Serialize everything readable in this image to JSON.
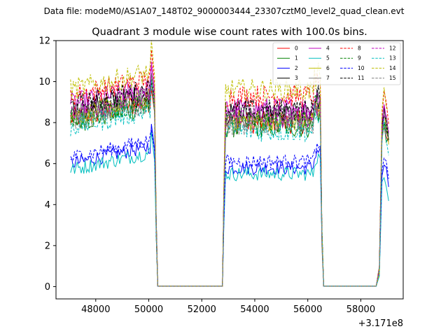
{
  "chart_data": {
    "type": "line",
    "suptitle": "Data file: modeM0/AS1A07_148T02_9000003444_23307cztM0_level2_quad_clean.evt",
    "title": "Quadrant 3 module wise count rates with 100.0s bins.",
    "xlabel": "",
    "ylabel": "",
    "offset_label": "+3.171e8",
    "xlim": [
      46500,
      59600
    ],
    "ylim": [
      -0.6,
      12
    ],
    "x_ticks": [
      48000,
      50000,
      52000,
      54000,
      56000,
      58000
    ],
    "y_ticks": [
      0,
      2,
      4,
      6,
      8,
      10,
      12
    ],
    "gaps": [
      {
        "x_start": 50300,
        "x_end": 52800
      },
      {
        "x_start": 56550,
        "x_end": 58600
      }
    ],
    "segments": [
      {
        "x_start": 47050,
        "x_end": 50300
      },
      {
        "x_start": 52800,
        "x_end": 56550
      },
      {
        "x_start": 58600,
        "x_end": 59050
      }
    ],
    "series": [
      {
        "name": "0",
        "color": "#ff0000",
        "dash": "solid",
        "base": 8.2
      },
      {
        "name": "1",
        "color": "#008000",
        "dash": "solid",
        "base": 8.0
      },
      {
        "name": "2",
        "color": "#0000ff",
        "dash": "solid",
        "base": 6.0
      },
      {
        "name": "3",
        "color": "#000000",
        "dash": "solid",
        "base": 8.6
      },
      {
        "name": "4",
        "color": "#bf00bf",
        "dash": "solid",
        "base": 8.9
      },
      {
        "name": "5",
        "color": "#00bfbf",
        "dash": "solid",
        "base": 5.7
      },
      {
        "name": "6",
        "color": "#bfbf00",
        "dash": "solid",
        "base": 8.3
      },
      {
        "name": "7",
        "color": "#808080",
        "dash": "solid",
        "base": 8.4
      },
      {
        "name": "8",
        "color": "#ff0000",
        "dash": "dashed",
        "base": 9.3
      },
      {
        "name": "9",
        "color": "#008000",
        "dash": "dashed",
        "base": 8.2
      },
      {
        "name": "10",
        "color": "#0000ff",
        "dash": "dashed",
        "base": 6.3
      },
      {
        "name": "11",
        "color": "#000000",
        "dash": "dashed",
        "base": 8.8
      },
      {
        "name": "12",
        "color": "#bf00bf",
        "dash": "dashed",
        "base": 8.5
      },
      {
        "name": "13",
        "color": "#00bfbf",
        "dash": "dashed",
        "base": 7.8
      },
      {
        "name": "14",
        "color": "#bfbf00",
        "dash": "dashed",
        "base": 9.6
      },
      {
        "name": "15",
        "color": "#808080",
        "dash": "dashed",
        "base": 8.1
      }
    ],
    "legend_position": "top-right"
  }
}
